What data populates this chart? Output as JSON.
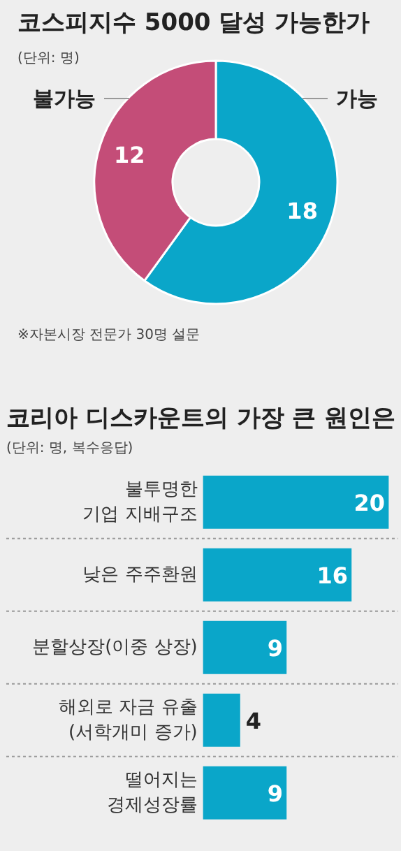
{
  "chart_data": [
    {
      "type": "donut",
      "title": "코스피지수 5000 달성 가능한가",
      "subtitle": "(단위: 명)",
      "categories": [
        "가능",
        "불가능"
      ],
      "values": [
        18,
        12
      ],
      "colors": [
        "#0aa6c9",
        "#c44d78"
      ],
      "data_labels": true,
      "annotations": [
        "※자본시장 전문가 30명 설문"
      ]
    },
    {
      "type": "bar",
      "orientation": "horizontal",
      "title": "코리아 디스카운트의 가장 큰 원인은",
      "subtitle": "(단위: 명, 복수응답)",
      "categories": [
        "불투명한\n기업 지배구조",
        "낮은 주주환원",
        "분할상장(이중 상장)",
        "해외로 자금 유출\n(서학개미 증가)",
        "떨어지는\n경제성장률"
      ],
      "values": [
        20,
        16,
        9,
        4,
        9
      ],
      "color": "#0aa6c9",
      "data_labels": true,
      "grid": "y"
    }
  ]
}
